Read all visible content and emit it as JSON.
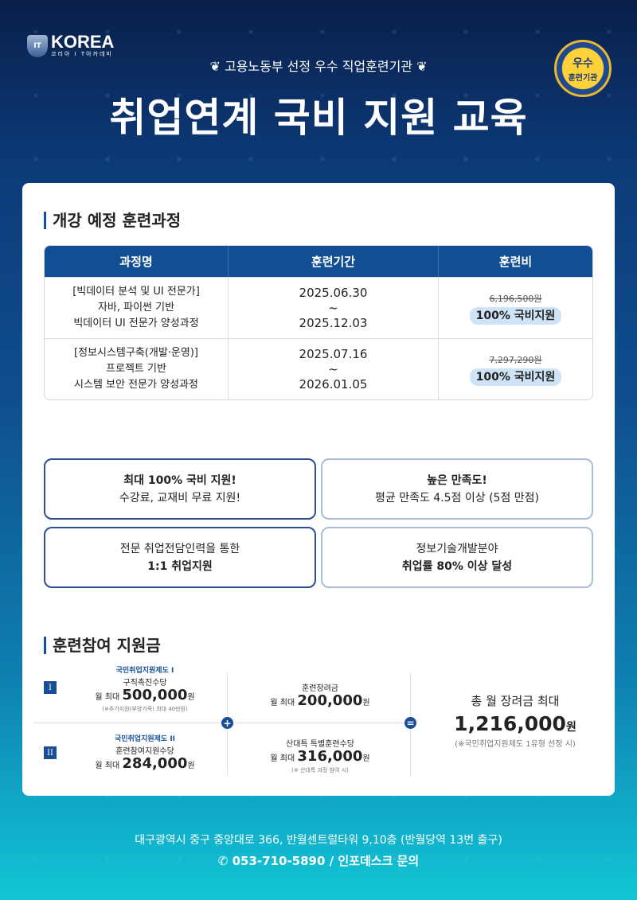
{
  "header": {
    "logo_text": "KOREA",
    "logo_sub": "코리아 I T아카데미",
    "logo_badge": "IT",
    "subtitle": "고용노동부 선정 우수 직업훈련기관",
    "title": "취업연계 국비 지원 교육",
    "seal_line1": "우수",
    "seal_line2": "훈련기관"
  },
  "courses": {
    "heading": "개강 예정 훈련과정",
    "columns": [
      "과정명",
      "훈련기간",
      "훈련비"
    ],
    "rows": [
      {
        "name": [
          "[빅데이터 분석 및 UI 전문가]",
          "자바, 파이썬 기반",
          "빅데이터 UI 전문가 양성과정"
        ],
        "start": "2025.06.30",
        "sep": "~",
        "end": "2025.12.03",
        "price": "6,196,500원",
        "support": "100% 국비지원"
      },
      {
        "name": [
          "[정보시스템구축(개발·운영)]",
          "프로젝트 기반",
          "시스템 보안 전문가 양성과정"
        ],
        "start": "2025.07.16",
        "sep": "~",
        "end": "2026.01.05",
        "price": "7,297,290원",
        "support": "100% 국비지원"
      }
    ]
  },
  "features": [
    {
      "l1": "최대 100% 국비 지원!",
      "l2": "수강료, 교재비 무료 지원!"
    },
    {
      "l1": "높은 만족도!",
      "l2": "평균 만족도 4.5점 이상 (5점 만점)"
    },
    {
      "l1": "전문 취업전담인력을 통한",
      "l2": "1:1 취업지원"
    },
    {
      "l1": "정보기술개발분야",
      "l2": "취업률 80% 이상 달성"
    }
  ],
  "subsidy": {
    "heading": "훈련참여 지원금",
    "i": {
      "num": "I",
      "program": "국민취업지원제도 I",
      "name": "구직촉진수당",
      "prefix": "월 최대",
      "amount": "500,000",
      "unit": "원",
      "note": "(※추가지원(부양가족) 최대 40만원)"
    },
    "ii": {
      "num": "II",
      "program": "국민취업지원제도 II",
      "name": "훈련참여지원수당",
      "prefix": "월 최대",
      "amount": "284,000",
      "unit": "원"
    },
    "a": {
      "name": "훈련장려금",
      "prefix": "월 최대",
      "amount": "200,000",
      "unit": "원"
    },
    "b": {
      "name": "산대특 특별훈련수당",
      "prefix": "월 최대",
      "amount": "316,000",
      "unit": "원",
      "note": "(※ 산대특 과정 참여 시)"
    },
    "plus": "+",
    "equals": "=",
    "total": {
      "label": "총 월 장려금 최대",
      "amount": "1,216,000",
      "unit": "원",
      "note": "(※국민취업지원제도 1유형 선정 시)"
    }
  },
  "footer": {
    "address": "대구광역시 중구 중앙대로 366, 반월센트럴타워 9,10층 (반월당역 13번 출구)",
    "phone": "053-710-5890 / 인포데스크 문의",
    "phone_icon": "✆"
  }
}
